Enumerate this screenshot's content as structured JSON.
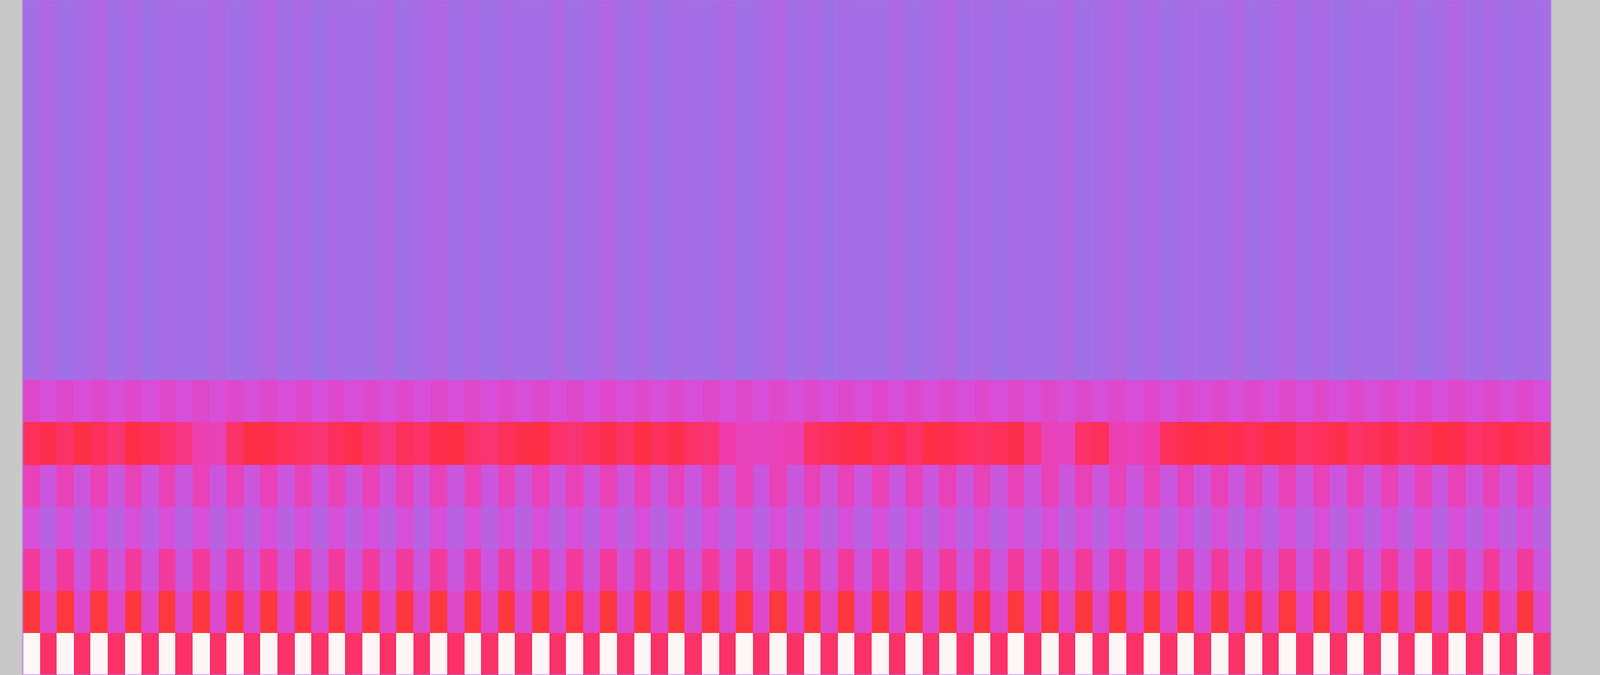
{
  "chart_data": {
    "type": "heatmap",
    "tick_labels": false,
    "xlim": [
      0,
      90
    ],
    "ylim": [
      0,
      16
    ],
    "color_range": [
      0,
      100
    ],
    "y_edges": [
      0,
      1,
      2,
      3,
      4,
      5,
      6,
      7,
      16
    ],
    "cells": [
      [
        100,
        70,
        100,
        70,
        100,
        70,
        100,
        70,
        100,
        70,
        100,
        70,
        100,
        70,
        100,
        70,
        100,
        70,
        100,
        70,
        100,
        70,
        100,
        70,
        100,
        70,
        100,
        70,
        100,
        70,
        100,
        70,
        100,
        70,
        100,
        70,
        100,
        70,
        100,
        70,
        100,
        70,
        100,
        70,
        100,
        70,
        100,
        70,
        100,
        70,
        100,
        70,
        100,
        70,
        100,
        70,
        100,
        70,
        100,
        70,
        100,
        70,
        100,
        70,
        100,
        70,
        100,
        70,
        100,
        70,
        100,
        70,
        100,
        70,
        100,
        70,
        100,
        70,
        100,
        70,
        100,
        70,
        100,
        70,
        100,
        70,
        100,
        70,
        100,
        70
      ],
      [
        82,
        50,
        82,
        50,
        82,
        50,
        82,
        50,
        82,
        50,
        82,
        50,
        82,
        50,
        82,
        50,
        82,
        50,
        82,
        50,
        82,
        50,
        82,
        50,
        82,
        50,
        82,
        50,
        82,
        50,
        82,
        50,
        82,
        50,
        82,
        50,
        82,
        50,
        82,
        50,
        82,
        50,
        82,
        50,
        82,
        50,
        82,
        50,
        82,
        50,
        82,
        50,
        82,
        50,
        82,
        50,
        82,
        50,
        82,
        50,
        82,
        50,
        82,
        50,
        82,
        50,
        82,
        50,
        82,
        50,
        82,
        50,
        82,
        50,
        82,
        50,
        82,
        50,
        82,
        50,
        82,
        50,
        82,
        50,
        82,
        50,
        82,
        50,
        82,
        50
      ],
      [
        62,
        42,
        62,
        42,
        62,
        42,
        62,
        42,
        62,
        42,
        62,
        42,
        62,
        42,
        62,
        42,
        62,
        42,
        62,
        42,
        62,
        42,
        62,
        42,
        62,
        42,
        62,
        42,
        62,
        42,
        62,
        42,
        62,
        42,
        62,
        42,
        62,
        42,
        62,
        42,
        62,
        42,
        62,
        42,
        62,
        42,
        62,
        42,
        62,
        42,
        62,
        42,
        62,
        42,
        62,
        42,
        62,
        42,
        62,
        42,
        62,
        42,
        62,
        42,
        62,
        42,
        62,
        42,
        62,
        42,
        62,
        42,
        62,
        42,
        62,
        42,
        62,
        42,
        62,
        42,
        62,
        42,
        62,
        42,
        62,
        42,
        62,
        42,
        62,
        42
      ],
      [
        46,
        36,
        46,
        36,
        46,
        36,
        46,
        36,
        46,
        36,
        46,
        36,
        46,
        36,
        46,
        36,
        46,
        36,
        46,
        36,
        46,
        36,
        46,
        36,
        46,
        36,
        46,
        36,
        46,
        36,
        46,
        36,
        46,
        36,
        46,
        36,
        46,
        36,
        46,
        36,
        46,
        36,
        46,
        36,
        46,
        36,
        46,
        36,
        46,
        36,
        46,
        36,
        46,
        36,
        46,
        36,
        46,
        36,
        46,
        36,
        46,
        36,
        46,
        36,
        46,
        36,
        46,
        36,
        46,
        36,
        46,
        36,
        46,
        36,
        46,
        36,
        46,
        36,
        46,
        36,
        46,
        36,
        46,
        36,
        46,
        36,
        46,
        36,
        46,
        36
      ],
      [
        56,
        42,
        56,
        42,
        56,
        42,
        56,
        42,
        56,
        42,
        56,
        42,
        56,
        42,
        56,
        42,
        56,
        42,
        56,
        42,
        56,
        42,
        56,
        42,
        56,
        42,
        56,
        42,
        56,
        42,
        56,
        42,
        56,
        42,
        56,
        42,
        56,
        42,
        56,
        42,
        56,
        42,
        56,
        42,
        56,
        42,
        56,
        42,
        56,
        42,
        56,
        42,
        56,
        42,
        56,
        42,
        56,
        42,
        56,
        42,
        56,
        42,
        56,
        42,
        56,
        42,
        56,
        42,
        56,
        42,
        56,
        42,
        56,
        42,
        56,
        42,
        56,
        42,
        56,
        42,
        56,
        42,
        56,
        42,
        56,
        42,
        56,
        42,
        56,
        42
      ],
      [
        72,
        74,
        70,
        76,
        72,
        68,
        75,
        73,
        70,
        66,
        58,
        56,
        70,
        76,
        74,
        72,
        70,
        68,
        72,
        74,
        70,
        66,
        72,
        70,
        74,
        76,
        70,
        68,
        72,
        74,
        76,
        70,
        68,
        72,
        74,
        70,
        76,
        72,
        74,
        70,
        68,
        60,
        55,
        54,
        56,
        58,
        70,
        72,
        74,
        76,
        72,
        74,
        70,
        76,
        74,
        72,
        70,
        72,
        74,
        66,
        56,
        54,
        70,
        72,
        58,
        56,
        60,
        72,
        74,
        76,
        78,
        74,
        72,
        76,
        74,
        70,
        72,
        74,
        70,
        72,
        74,
        70,
        72,
        76,
        74,
        70,
        72,
        74,
        72,
        70
      ],
      [
        50,
        46,
        50,
        46,
        50,
        46,
        50,
        46,
        50,
        46,
        50,
        46,
        50,
        46,
        50,
        46,
        50,
        46,
        50,
        46,
        50,
        46,
        50,
        46,
        50,
        46,
        50,
        46,
        50,
        46,
        50,
        46,
        50,
        46,
        50,
        46,
        50,
        46,
        50,
        46,
        50,
        46,
        50,
        46,
        50,
        46,
        50,
        46,
        50,
        46,
        50,
        46,
        50,
        46,
        50,
        46,
        50,
        46,
        50,
        46,
        50,
        46,
        50,
        46,
        50,
        46,
        50,
        46,
        50,
        46,
        50,
        46,
        50,
        46,
        50,
        46,
        50,
        46,
        50,
        46,
        50,
        46,
        50,
        46,
        50,
        46,
        50,
        46,
        50,
        46
      ],
      [
        30,
        33,
        28,
        31,
        34,
        29,
        32,
        27,
        31,
        30,
        30,
        33,
        28,
        31,
        34,
        29,
        32,
        27,
        31,
        30,
        30,
        33,
        28,
        31,
        34,
        29,
        32,
        27,
        31,
        30,
        30,
        33,
        28,
        31,
        34,
        29,
        32,
        27,
        31,
        30,
        30,
        33,
        28,
        31,
        34,
        29,
        32,
        27,
        31,
        30,
        30,
        33,
        28,
        31,
        34,
        29,
        32,
        27,
        31,
        30,
        30,
        33,
        28,
        31,
        34,
        29,
        32,
        27,
        31,
        30,
        30,
        33,
        28,
        31,
        34,
        29,
        32,
        27,
        31,
        30,
        30,
        33,
        28,
        31,
        34,
        29,
        32,
        27,
        31,
        30
      ]
    ]
  }
}
